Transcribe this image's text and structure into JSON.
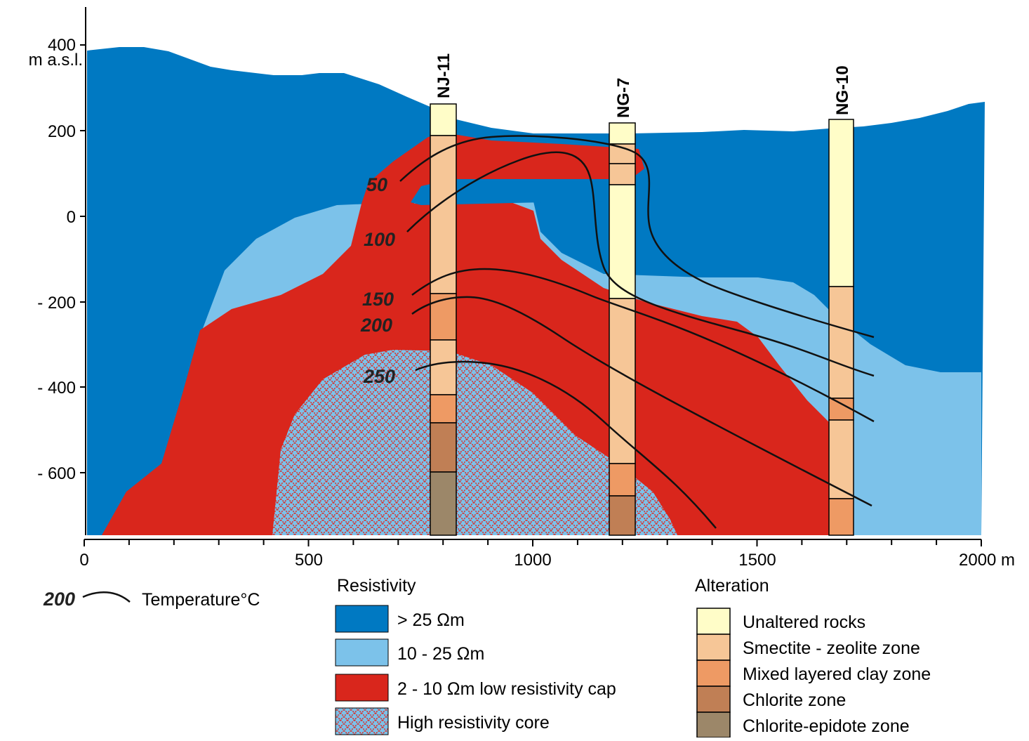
{
  "axes": {
    "y_labels": [
      "400",
      "200",
      "0",
      "- 200",
      "- 400",
      "- 600"
    ],
    "y_unit": "m a.s.l.",
    "x_labels": [
      "0",
      "500",
      "1000",
      "1500",
      "2000 m"
    ]
  },
  "wells": [
    "NJ-11",
    "NG-7",
    "NG-10"
  ],
  "isotherms": [
    "50",
    "100",
    "150",
    "200",
    "250"
  ],
  "legend": {
    "temperature": {
      "sample": "200",
      "label": "Temperature°C"
    },
    "resistivity": {
      "title": "Resistivity",
      "items": [
        ">  25 Ωm",
        "10 - 25 Ωm",
        "2 - 10 Ωm low resistivity cap",
        "High resistivity core"
      ]
    },
    "alteration": {
      "title": "Alteration",
      "items": [
        "Unaltered rocks",
        "Smectite - zeolite zone",
        "Mixed layered clay zone",
        "Chlorite zone",
        "Chlorite-epidote zone"
      ]
    }
  }
}
